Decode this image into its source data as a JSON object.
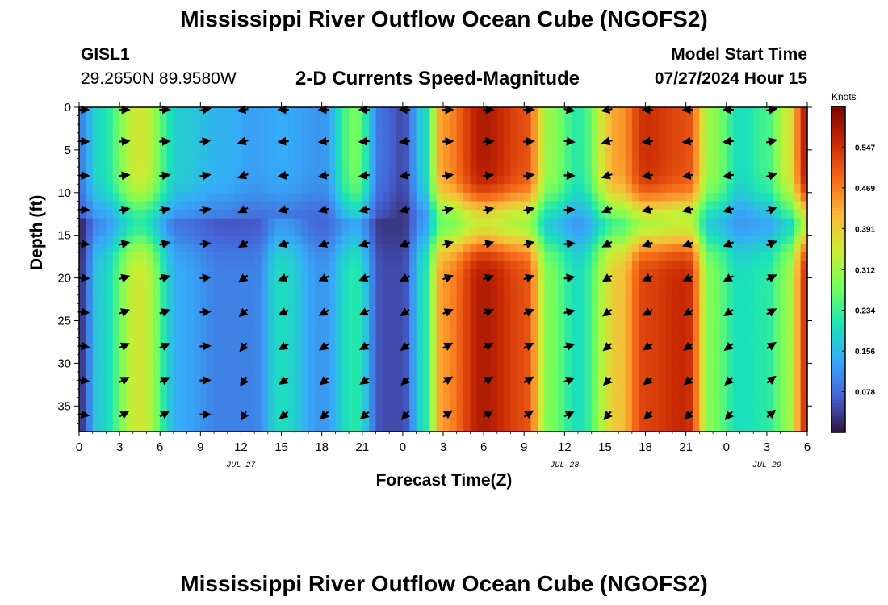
{
  "page": {
    "title": "Mississippi River Outflow Ocean Cube (NGOFS2)",
    "bottom_title": "Mississippi River Outflow Ocean Cube (NGOFS2)",
    "station_id": "GISL1",
    "station_coords": "29.2650N  89.9580W",
    "subtitle": "2-D Currents Speed-Magnitude",
    "model_start_label": "Model Start Time",
    "model_start_value": "07/27/2024 Hour 15"
  },
  "chart_data": {
    "type": "heatmap",
    "xlabel": "Forecast Time(Z)",
    "ylabel": "Depth (ft)",
    "colorbar_unit": "Knots",
    "colormap": [
      "#30123b",
      "#4662d7",
      "#36aaf9",
      "#1ae4b6",
      "#72fe5e",
      "#c8ef34",
      "#faba39",
      "#f66b19",
      "#ca2a04",
      "#7a0403"
    ],
    "color_range": [
      0.0,
      0.625
    ],
    "colorbar_ticks": [
      "0.078",
      "0.156",
      "0.234",
      "0.312",
      "0.391",
      "0.469",
      "0.547"
    ],
    "x_ticks": [
      {
        "hour": 0,
        "label": "0"
      },
      {
        "hour": 3,
        "label": "3"
      },
      {
        "hour": 6,
        "label": "6"
      },
      {
        "hour": 9,
        "label": "9"
      },
      {
        "hour": 12,
        "label": "12"
      },
      {
        "hour": 15,
        "label": "15"
      },
      {
        "hour": 18,
        "label": "18"
      },
      {
        "hour": 21,
        "label": "21"
      },
      {
        "hour": 24,
        "label": "0"
      },
      {
        "hour": 27,
        "label": "3"
      },
      {
        "hour": 30,
        "label": "6"
      },
      {
        "hour": 33,
        "label": "9"
      },
      {
        "hour": 36,
        "label": "12"
      },
      {
        "hour": 39,
        "label": "15"
      },
      {
        "hour": 42,
        "label": "18"
      },
      {
        "hour": 45,
        "label": "21"
      },
      {
        "hour": 48,
        "label": "0"
      },
      {
        "hour": 51,
        "label": "3"
      },
      {
        "hour": 54,
        "label": "6"
      }
    ],
    "date_labels": [
      {
        "hour": 12,
        "label": "JUL 27"
      },
      {
        "hour": 36,
        "label": "JUL 28"
      },
      {
        "hour": 51,
        "label": "JUL 29"
      }
    ],
    "x_range": [
      0,
      54
    ],
    "y_ticks": [
      0,
      5,
      10,
      15,
      20,
      25,
      30,
      35
    ],
    "y_range": [
      0,
      38
    ],
    "y_inverted": true,
    "speed_time_nodes": [
      {
        "hour": 0,
        "surface": 0.1,
        "deep": 0.03
      },
      {
        "hour": 1.5,
        "surface": 0.2,
        "deep": 0.18
      },
      {
        "hour": 4.5,
        "surface": 0.36,
        "deep": 0.36
      },
      {
        "hour": 7.5,
        "surface": 0.18,
        "deep": 0.14
      },
      {
        "hour": 10.5,
        "surface": 0.15,
        "deep": 0.1
      },
      {
        "hour": 13,
        "surface": 0.13,
        "deep": 0.1
      },
      {
        "hour": 15,
        "surface": 0.14,
        "deep": 0.2
      },
      {
        "hour": 18,
        "surface": 0.12,
        "deep": 0.12
      },
      {
        "hour": 20.5,
        "surface": 0.28,
        "deep": 0.22
      },
      {
        "hour": 22.5,
        "surface": 0.08,
        "deep": 0.05
      },
      {
        "hour": 24,
        "surface": 0.05,
        "deep": 0.05
      },
      {
        "hour": 25.5,
        "surface": 0.18,
        "deep": 0.2
      },
      {
        "hour": 27,
        "surface": 0.45,
        "deep": 0.45
      },
      {
        "hour": 30,
        "surface": 0.58,
        "deep": 0.58
      },
      {
        "hour": 33,
        "surface": 0.52,
        "deep": 0.52
      },
      {
        "hour": 35,
        "surface": 0.3,
        "deep": 0.28
      },
      {
        "hour": 37,
        "surface": 0.22,
        "deep": 0.2
      },
      {
        "hour": 40,
        "surface": 0.44,
        "deep": 0.4
      },
      {
        "hour": 42,
        "surface": 0.55,
        "deep": 0.53
      },
      {
        "hour": 45,
        "surface": 0.52,
        "deep": 0.56
      },
      {
        "hour": 47,
        "surface": 0.3,
        "deep": 0.28
      },
      {
        "hour": 49,
        "surface": 0.2,
        "deep": 0.2
      },
      {
        "hour": 51,
        "surface": 0.24,
        "deep": 0.22
      },
      {
        "hour": 52.5,
        "surface": 0.35,
        "deep": 0.3
      },
      {
        "hour": 54,
        "surface": 0.58,
        "deep": 0.55
      }
    ],
    "mid_depth_minimum": {
      "depth_ft": 13.5,
      "width_ft": 3.2,
      "factor": 0.62
    },
    "vector_times": [
      0,
      3,
      6,
      9,
      12,
      15,
      18,
      21,
      24,
      27,
      30,
      33,
      36,
      39,
      42,
      45,
      48,
      51
    ],
    "vector_depths": [
      0,
      4,
      8,
      12,
      16,
      20,
      24,
      28,
      32,
      36
    ],
    "vector_direction_nodes_deg": [
      {
        "hour": 0,
        "surface": 0,
        "deep": 10
      },
      {
        "hour": 3,
        "surface": 0,
        "deep": -30
      },
      {
        "hour": 6,
        "surface": 0,
        "deep": -30
      },
      {
        "hour": 9,
        "surface": -10,
        "deep": 0
      },
      {
        "hour": 12,
        "surface": 170,
        "deep": 120
      },
      {
        "hour": 15,
        "surface": 180,
        "deep": 140
      },
      {
        "hour": 18,
        "surface": 180,
        "deep": 135
      },
      {
        "hour": 21,
        "surface": 180,
        "deep": 140
      },
      {
        "hour": 24,
        "surface": 180,
        "deep": 130
      },
      {
        "hour": 27,
        "surface": 0,
        "deep": -35
      },
      {
        "hour": 30,
        "surface": 0,
        "deep": -35
      },
      {
        "hour": 33,
        "surface": 0,
        "deep": -35
      },
      {
        "hour": 36,
        "surface": 10,
        "deep": -25
      },
      {
        "hour": 39,
        "surface": 170,
        "deep": 130
      },
      {
        "hour": 42,
        "surface": 180,
        "deep": 135
      },
      {
        "hour": 45,
        "surface": 180,
        "deep": 135
      },
      {
        "hour": 48,
        "surface": 180,
        "deep": 130
      },
      {
        "hour": 51,
        "surface": -10,
        "deep": -40
      }
    ]
  }
}
